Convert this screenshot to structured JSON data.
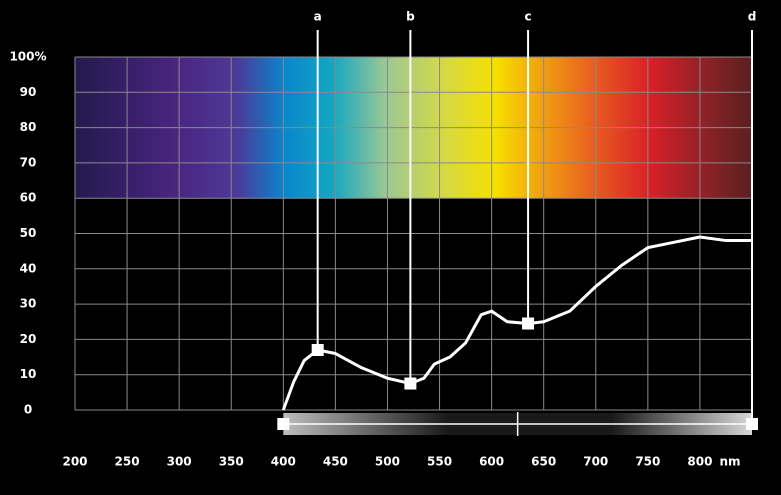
{
  "chart_data": {
    "type": "line",
    "x": [
      400,
      410,
      420,
      433,
      450,
      475,
      500,
      522,
      535,
      545,
      560,
      575,
      590,
      600,
      615,
      635,
      650,
      675,
      700,
      725,
      750,
      775,
      800,
      825,
      850
    ],
    "series": [
      {
        "color": "#ffffff",
        "values": [
          0,
          8,
          14,
          17,
          16,
          12,
          9,
          7.5,
          9,
          13,
          15,
          19,
          27,
          28,
          25,
          24.5,
          25,
          28,
          35,
          41,
          46,
          47.5,
          49,
          48,
          48
        ]
      }
    ],
    "markers": [
      {
        "label": "a",
        "x": 433,
        "y": 17
      },
      {
        "label": "b",
        "x": 522,
        "y": 7.5
      },
      {
        "label": "c",
        "x": 635,
        "y": 24.5
      },
      {
        "label": "d",
        "x": 850
      }
    ],
    "range": [
      400,
      850
    ],
    "spectrum_range": [
      60,
      100
    ],
    "xlim": [
      200,
      850
    ],
    "xticks": [
      200,
      250,
      300,
      350,
      400,
      450,
      500,
      550,
      600,
      650,
      700,
      750,
      800
    ],
    "x_unit": "nm",
    "ylim": [
      0,
      100
    ],
    "yticks": [
      0,
      10,
      20,
      30,
      40,
      50,
      60,
      70,
      80,
      90,
      {
        "value": 100,
        "label": "100%"
      }
    ],
    "grid": true
  }
}
